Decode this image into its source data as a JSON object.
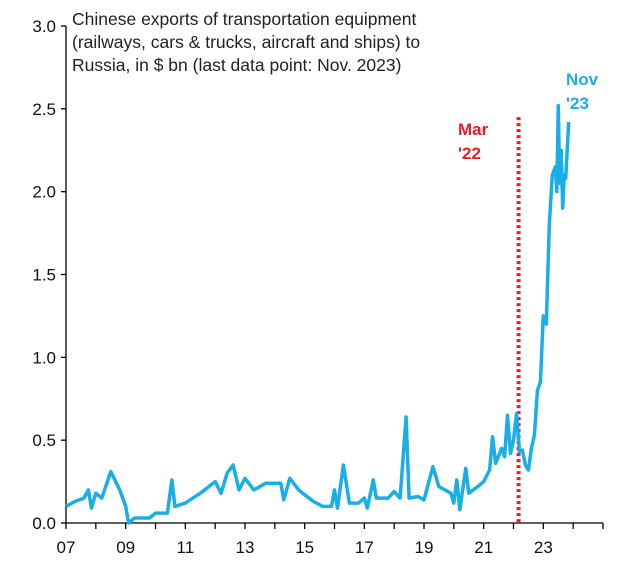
{
  "chart_data": {
    "type": "line",
    "title_lines": [
      "Chinese exports of transportation equipment",
      "(railways, cars & trucks, aircraft and ships) to",
      "Russia, in $ bn (last data point: Nov. 2023)"
    ],
    "xlabel": "",
    "ylabel": "",
    "xlim": [
      2007,
      2025
    ],
    "ylim": [
      0,
      3.0
    ],
    "x_tick_labels": [
      "07",
      "09",
      "11",
      "13",
      "15",
      "17",
      "19",
      "21",
      "23"
    ],
    "y_tick_labels": [
      "0.0",
      "0.5",
      "1.0",
      "1.5",
      "2.0",
      "2.5",
      "3.0"
    ],
    "grid": false,
    "series": [
      {
        "name": "Chinese exports of transportation equipment to Russia",
        "color": "#1aaee8",
        "x": [
          2007.0,
          2007.3,
          2007.6,
          2007.75,
          2007.85,
          2008.0,
          2008.2,
          2008.5,
          2008.8,
          2009.0,
          2009.1,
          2009.3,
          2009.8,
          2010.0,
          2010.4,
          2010.55,
          2010.65,
          2011.0,
          2011.5,
          2012.0,
          2012.2,
          2012.4,
          2012.6,
          2012.8,
          2013.0,
          2013.3,
          2013.7,
          2014.2,
          2014.3,
          2014.5,
          2014.8,
          2015.0,
          2015.3,
          2015.6,
          2015.9,
          2016.0,
          2016.1,
          2016.3,
          2016.5,
          2016.8,
          2017.0,
          2017.1,
          2017.3,
          2017.4,
          2017.8,
          2018.0,
          2018.2,
          2018.4,
          2018.5,
          2018.8,
          2019.0,
          2019.3,
          2019.5,
          2019.9,
          2020.0,
          2020.1,
          2020.2,
          2020.4,
          2020.5,
          2020.8,
          2021.0,
          2021.2,
          2021.3,
          2021.4,
          2021.6,
          2021.7,
          2021.8,
          2021.9,
          2022.0,
          2022.1,
          2022.2,
          2022.3,
          2022.4,
          2022.5,
          2022.6,
          2022.7,
          2022.8,
          2022.9,
          2023.0,
          2023.1,
          2023.2,
          2023.3,
          2023.4,
          2023.45,
          2023.5,
          2023.55,
          2023.6,
          2023.65,
          2023.7,
          2023.75,
          2023.85
        ],
        "y": [
          0.1,
          0.13,
          0.15,
          0.2,
          0.09,
          0.18,
          0.15,
          0.31,
          0.2,
          0.1,
          0.0,
          0.03,
          0.03,
          0.06,
          0.06,
          0.26,
          0.1,
          0.12,
          0.18,
          0.25,
          0.18,
          0.3,
          0.35,
          0.2,
          0.27,
          0.2,
          0.24,
          0.24,
          0.14,
          0.27,
          0.2,
          0.17,
          0.13,
          0.1,
          0.1,
          0.2,
          0.09,
          0.35,
          0.12,
          0.12,
          0.15,
          0.09,
          0.26,
          0.15,
          0.15,
          0.19,
          0.15,
          0.64,
          0.15,
          0.16,
          0.14,
          0.34,
          0.22,
          0.18,
          0.12,
          0.26,
          0.08,
          0.33,
          0.18,
          0.22,
          0.25,
          0.32,
          0.52,
          0.36,
          0.45,
          0.4,
          0.65,
          0.42,
          0.5,
          0.66,
          0.43,
          0.44,
          0.35,
          0.32,
          0.45,
          0.53,
          0.8,
          0.85,
          1.25,
          1.2,
          1.8,
          2.1,
          2.15,
          2.0,
          2.52,
          2.05,
          2.25,
          1.9,
          2.1,
          2.08,
          2.42
        ]
      }
    ],
    "vline": {
      "x": 2022.17,
      "color": "#ee1c25",
      "label_lines": [
        "Mar",
        "'22"
      ]
    },
    "end_label": {
      "lines": [
        "Nov",
        "'23"
      ],
      "color": "#1aaee8"
    }
  }
}
